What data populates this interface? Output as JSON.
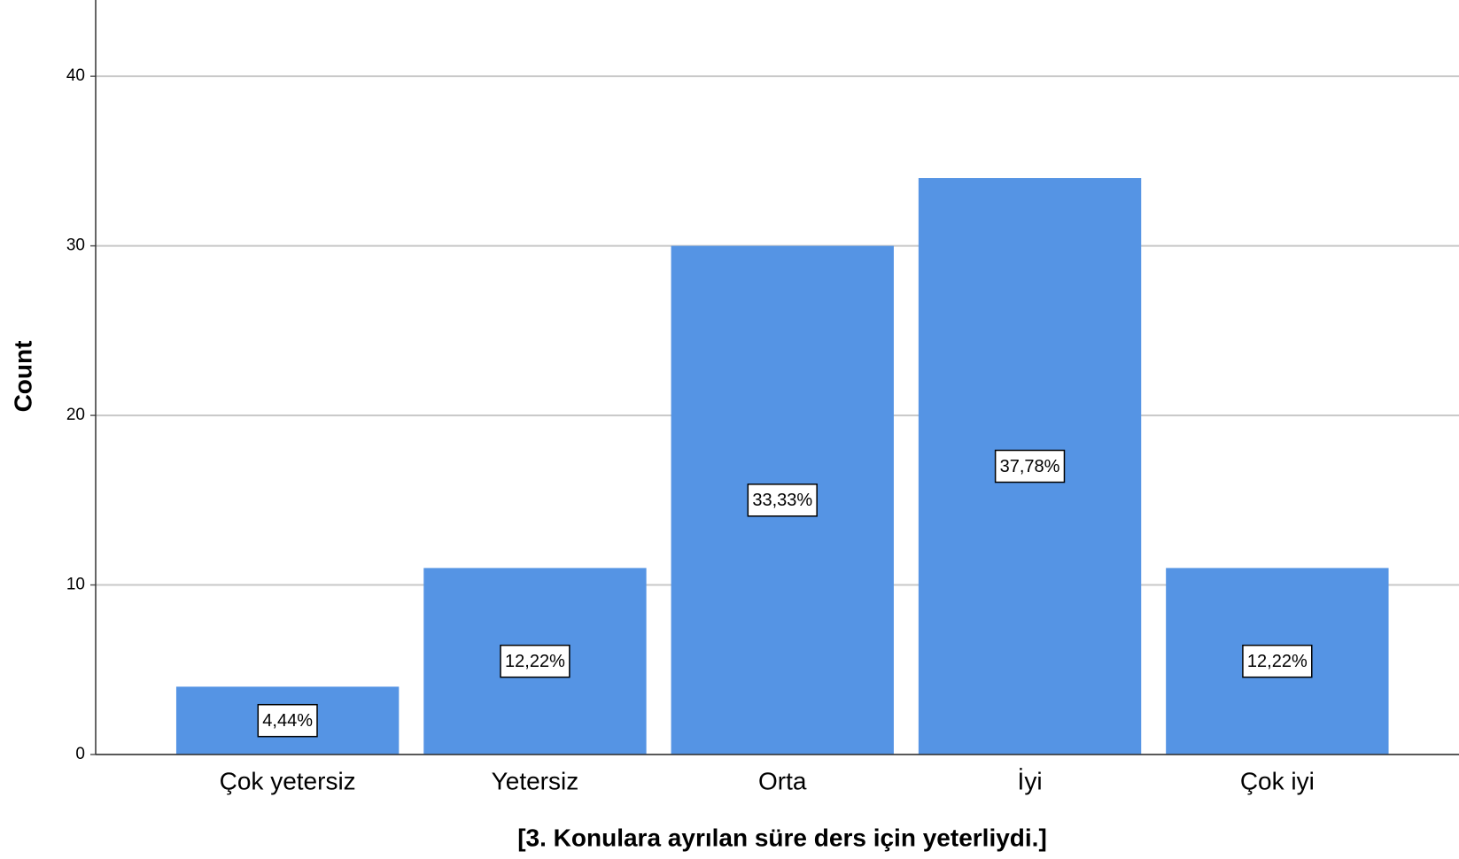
{
  "chart_data": {
    "type": "bar",
    "x_label": "[3. Konulara ayrılan süre ders için yeterliydi.]",
    "y_label": "Count",
    "categories": [
      "Çok yetersiz",
      "Yetersiz",
      "Orta",
      "İyi",
      "Çok iyi"
    ],
    "values": [
      4,
      11,
      30,
      34,
      11
    ],
    "percent": [
      4.44,
      12.22,
      33.33,
      37.78,
      12.22
    ],
    "percent_labels": [
      "4,44%",
      "12,22%",
      "33,33%",
      "37,78%",
      "12,22%"
    ],
    "color": "#5594e4",
    "ylim": [
      0,
      44.5
    ],
    "yticks": [
      0,
      10,
      20,
      30,
      40
    ],
    "grid": true
  }
}
